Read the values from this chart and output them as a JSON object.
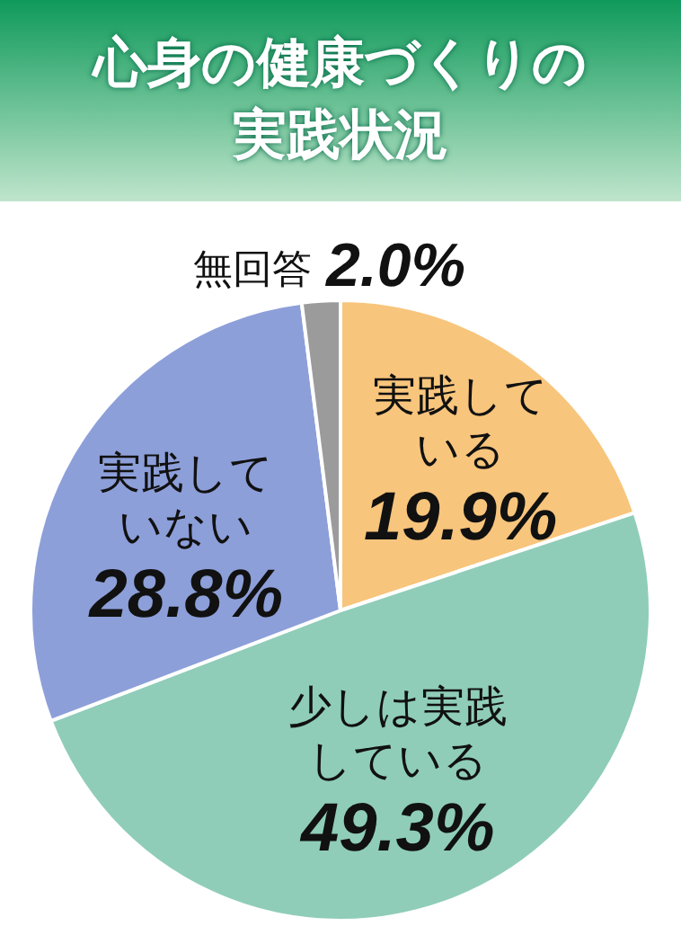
{
  "chart_data": {
    "type": "pie",
    "title": "心身の健康づくりの実践状況",
    "categories": [
      "実践している",
      "少しは実践している",
      "実践していない",
      "無回答"
    ],
    "values": [
      19.9,
      49.3,
      28.8,
      2.0
    ],
    "colors": [
      "#f8c57c",
      "#8fcdb9",
      "#8d9fd9",
      "#9b9b9b"
    ],
    "value_labels": [
      "19.9%",
      "49.3%",
      "28.8%",
      "2.0%"
    ],
    "legend": false
  }
}
